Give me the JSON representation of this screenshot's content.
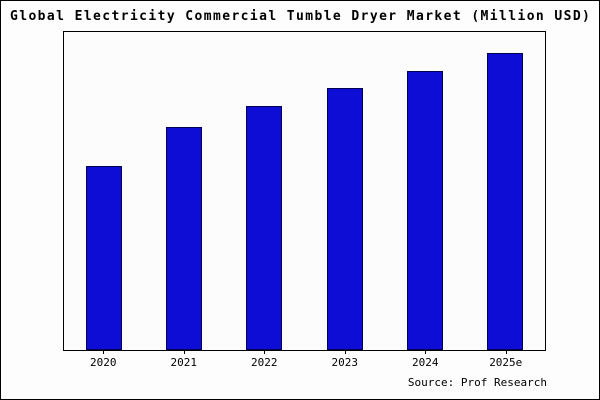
{
  "chart_data": {
    "type": "bar",
    "title": "Global Electricity Commercial Tumble Dryer Market (Million USD)",
    "categories": [
      "2020",
      "2021",
      "2022",
      "2023",
      "2024",
      "2025e"
    ],
    "values": [
      62,
      75,
      82,
      88,
      94,
      100
    ],
    "xlabel": "",
    "ylabel": "",
    "ylim": [
      0,
      107
    ],
    "y_axis_tick_labels_visible": false,
    "grid": false,
    "legend": false,
    "bar_color": "#0d0dd6",
    "bar_border_color": "#000050"
  },
  "source": {
    "text": "Source: Prof Research"
  }
}
